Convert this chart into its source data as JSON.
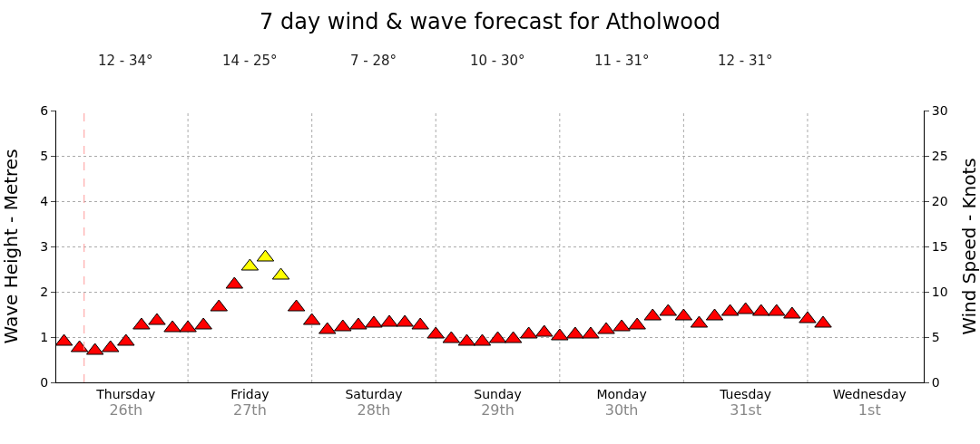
{
  "chart_data": {
    "type": "scatter",
    "title": "7 day wind & wave forecast for Atholwood",
    "ylabel": "Wave Height - Metres",
    "y2label": "Wind Speed - Knots",
    "annotations": [
      "12 - 34°",
      "14 - 25°",
      "7 - 28°",
      "10 - 30°",
      "11 - 31°",
      "12 - 31°"
    ],
    "categories": [
      null,
      null,
      null,
      null,
      "Thursday\n26th",
      null,
      null,
      null,
      null,
      null,
      null,
      null,
      "Friday\n27th",
      null,
      null,
      null,
      null,
      null,
      null,
      null,
      "Saturday\n28th",
      null,
      null,
      null,
      null,
      null,
      null,
      null,
      "Sunday\n29th",
      null,
      null,
      null,
      null,
      null,
      null,
      null,
      "Monday\n30th",
      null,
      null,
      null,
      null,
      null,
      null,
      null,
      "Tuesday\n31st",
      null,
      null,
      null,
      null,
      null,
      null,
      null,
      "Wednesday\n1st",
      null,
      null,
      null
    ],
    "series": [
      {
        "axis": "y2",
        "values": [
          4.5,
          3.8,
          3.5,
          3.8,
          4.5,
          6.3,
          6.8,
          6.0,
          6.0,
          6.3,
          8.3,
          10.8,
          12.8,
          13.8,
          11.8,
          8.3,
          6.8,
          5.8,
          6.1,
          6.3,
          6.5,
          6.6,
          6.6,
          6.3,
          5.3,
          4.8,
          4.5,
          4.5,
          4.8,
          4.8,
          5.3,
          5.5,
          5.1,
          5.3,
          5.3,
          5.8,
          6.1,
          6.3,
          7.3,
          7.8,
          7.3,
          6.5,
          7.3,
          7.8,
          8.0,
          7.8,
          7.8,
          7.5,
          7.0,
          6.5,
          null,
          null,
          null,
          null,
          null,
          null
        ],
        "colors": [
          "#ff0000",
          "#ff0000",
          "#ff0000",
          "#ff0000",
          "#ff0000",
          "#ff0000",
          "#ff0000",
          "#ff0000",
          "#ff0000",
          "#ff0000",
          "#ff0000",
          "#ff0000",
          "#ffff00",
          "#ffff00",
          "#ffff00",
          "#ff0000",
          "#ff0000",
          "#ff0000",
          "#ff0000",
          "#ff0000",
          "#ff0000",
          "#ff0000",
          "#ff0000",
          "#ff0000",
          "#ff0000",
          "#ff0000",
          "#ff0000",
          "#ff0000",
          "#ff0000",
          "#ff0000",
          "#ff0000",
          "#ff0000",
          "#ff0000",
          "#ff0000",
          "#ff0000",
          "#ff0000",
          "#ff0000",
          "#ff0000",
          "#ff0000",
          "#ff0000",
          "#ff0000",
          "#ff0000",
          "#ff0000",
          "#ff0000",
          "#ff0000",
          "#ff0000",
          "#ff0000",
          "#ff0000",
          "#ff0000",
          "#ff0000",
          "#ff0000",
          "#ff0000",
          "#ff0000",
          "#ff0000",
          "#ff0000",
          "#ff0000"
        ]
      }
    ],
    "marker": "triangle",
    "ylim": [
      0,
      6
    ],
    "yticks": [
      0,
      1,
      2,
      3,
      4,
      5,
      6
    ],
    "y2lim": [
      0,
      30
    ],
    "y2ticks": [
      0,
      5,
      10,
      15,
      20,
      25,
      30
    ],
    "grid": true
  }
}
